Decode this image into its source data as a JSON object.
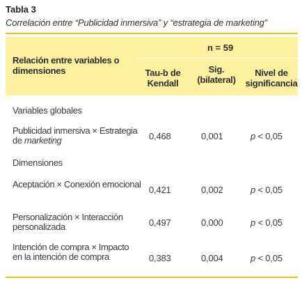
{
  "caption": {
    "title": "Tabla 3",
    "subtitle": "Correlación entre “Publicidad inmersiva” y “estrategia de marketing”"
  },
  "header": {
    "relation": "Relación entre variables o dimensiones",
    "n": "n = 59",
    "tau": "Tau-b de Kendall",
    "sig": "Sig. (bilateral)",
    "nivel": "Nivel de significancia"
  },
  "sections": {
    "global": "Variables globales",
    "dims": "Dimensiones"
  },
  "rows": [
    {
      "label_a": "Publicidad inmersiva × Estrategia de ",
      "label_b": "marketing",
      "tau": "0,468",
      "sig": "0,001",
      "p": "p",
      "nivel": " < 0,05"
    },
    {
      "label": "Aceptación × Conexión emocional",
      "tau": "0,421",
      "sig": "0,002",
      "p": "p",
      "nivel": " < 0,05"
    },
    {
      "label": "Personalización × Interacción personalizada",
      "tau": "0,497",
      "sig": "0,000",
      "p": "p",
      "nivel": " < 0,05"
    },
    {
      "label": "Intención de compra × Impacto en la intención de compra",
      "tau": "0,383",
      "sig": "0,004",
      "p": "p",
      "nivel": " < 0,05"
    }
  ],
  "colors": {
    "header_bg": "#fdf0a0",
    "rule": "#f2c300"
  }
}
